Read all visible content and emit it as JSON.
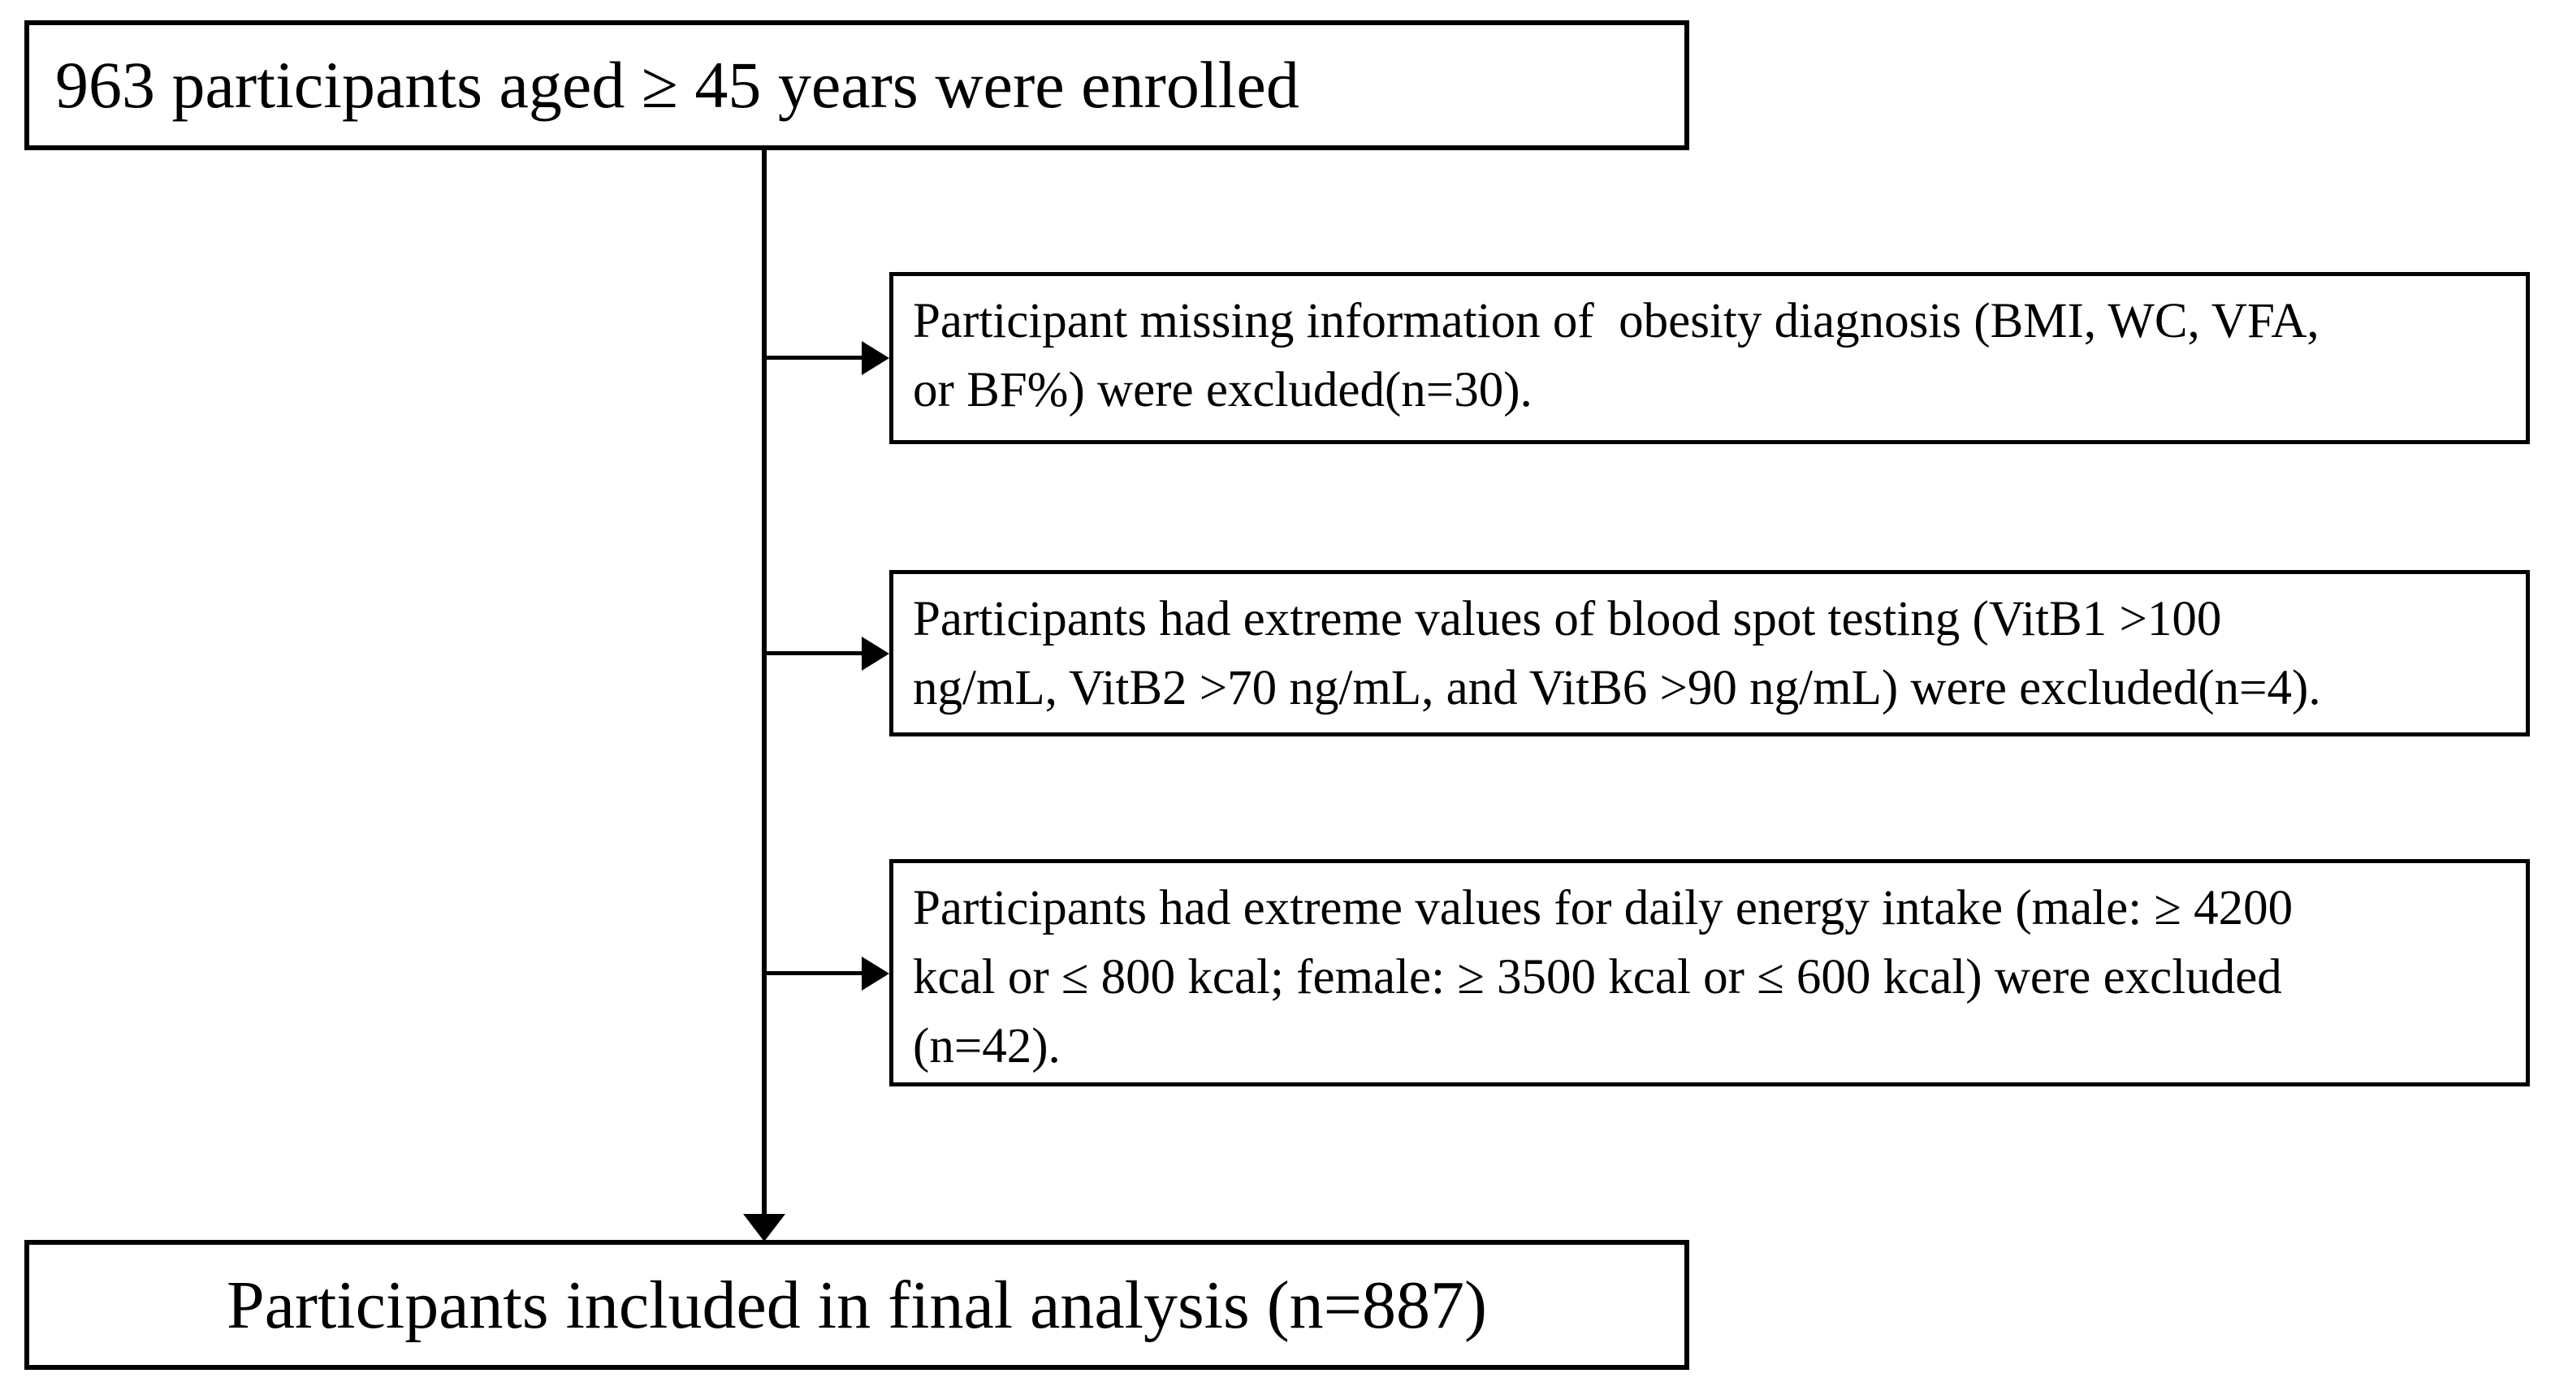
{
  "flowchart": {
    "enrollment_box": {
      "text": "963 participants aged ≥ 45 years were enrolled",
      "n_enrolled": 963
    },
    "exclusion_boxes": [
      {
        "text": "Participant missing information of  obesity diagnosis (BMI, WC, VFA,\nor BF%) were excluded(n=30).",
        "n_excluded": 30
      },
      {
        "text": "Participants had extreme values of blood spot testing (VitB1 >100\nng/mL, VitB2 >70 ng/mL, and VitB6 >90 ng/mL) were excluded(n=4).",
        "n_excluded": 4
      },
      {
        "text": "Participants had extreme values for daily energy intake (male: ≥ 4200\nkcal or ≤ 800 kcal; female: ≥ 3500 kcal or ≤ 600 kcal) were excluded\n(n=42).",
        "n_excluded": 42
      }
    ],
    "final_box": {
      "text": "Participants included in final analysis (n=887)",
      "n_included": 887
    },
    "colors": {
      "line": "#000000",
      "border": "#000000",
      "text": "#000000",
      "background": "#ffffff"
    }
  }
}
